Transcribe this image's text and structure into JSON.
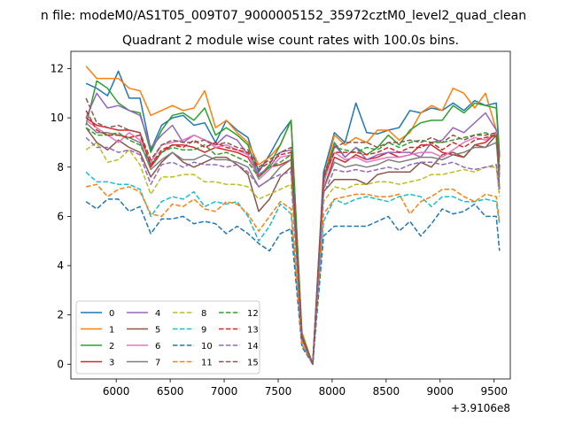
{
  "chart_data": {
    "type": "line",
    "suptitle": "n file: modeM0/AS1T05_009T07_9000005152_35972cztM0_level2_quad_clean",
    "title": "Quadrant 2 module wise count rates with 100.0s bins.",
    "xlabel": "",
    "ylabel": "",
    "x_offset_label": "+3.9106e8",
    "xlim": [
      5580,
      9650
    ],
    "ylim": [
      -0.6,
      12.7
    ],
    "xticks": [
      6000,
      6500,
      7000,
      7500,
      8000,
      8500,
      9000,
      9500
    ],
    "yticks": [
      0,
      2,
      4,
      6,
      8,
      10,
      12
    ],
    "x": [
      5720,
      5820,
      5920,
      6020,
      6120,
      6220,
      6320,
      6420,
      6520,
      6620,
      6720,
      6820,
      6920,
      7020,
      7120,
      7220,
      7320,
      7420,
      7520,
      7620,
      7720,
      7820,
      7920,
      8020,
      8120,
      8220,
      8320,
      8420,
      8520,
      8620,
      8720,
      8820,
      8920,
      9020,
      9120,
      9220,
      9320,
      9420,
      9520,
      9550
    ],
    "legend": {
      "placement": "lower-left",
      "columns": 4
    },
    "series": [
      {
        "name": "0",
        "color": "#1f77b4",
        "dash": "solid",
        "values": [
          11.4,
          11.2,
          10.9,
          11.9,
          10.8,
          10.8,
          8.7,
          9.7,
          10.0,
          10.1,
          9.7,
          9.8,
          9.0,
          9.9,
          9.5,
          9.2,
          7.8,
          8.5,
          9.3,
          9.9,
          1.2,
          0.0,
          7.8,
          9.4,
          9.0,
          10.6,
          9.4,
          9.35,
          9.5,
          9.6,
          10.3,
          10.2,
          10.4,
          10.3,
          10.6,
          10.3,
          10.7,
          10.5,
          10.6,
          8.5
        ]
      },
      {
        "name": "1",
        "color": "#ff7f0e",
        "dash": "solid",
        "values": [
          12.1,
          11.6,
          11.6,
          11.6,
          11.2,
          11.1,
          10.1,
          10.3,
          10.5,
          10.3,
          10.4,
          11.1,
          9.6,
          9.9,
          9.4,
          9.0,
          8.1,
          8.4,
          8.9,
          9.9,
          1.3,
          0.0,
          7.5,
          9.3,
          8.9,
          9.2,
          9.0,
          9.5,
          9.5,
          9.1,
          9.4,
          10.2,
          10.5,
          10.3,
          11.2,
          11.0,
          10.4,
          11.0,
          9.5,
          8.4
        ]
      },
      {
        "name": "2",
        "color": "#2ca02c",
        "dash": "solid",
        "values": [
          9.7,
          11.5,
          11.2,
          10.6,
          10.3,
          10.2,
          8.6,
          9.5,
          10.1,
          10.2,
          9.9,
          10.4,
          9.3,
          9.6,
          9.3,
          8.9,
          7.6,
          8.1,
          8.9,
          9.9,
          1.2,
          0.0,
          7.4,
          9.0,
          8.4,
          8.8,
          8.5,
          8.8,
          9.3,
          8.9,
          9.5,
          9.8,
          9.9,
          9.9,
          10.5,
          10.2,
          10.6,
          10.5,
          10.4,
          8.4
        ]
      },
      {
        "name": "3",
        "color": "#d62728",
        "dash": "solid",
        "values": [
          10.0,
          9.7,
          9.6,
          9.5,
          9.5,
          9.4,
          8.0,
          8.6,
          8.9,
          8.9,
          8.8,
          8.6,
          8.8,
          8.7,
          8.6,
          8.4,
          7.6,
          8.0,
          8.1,
          8.3,
          1.1,
          0.0,
          7.1,
          8.4,
          8.2,
          8.5,
          8.3,
          8.4,
          8.6,
          8.4,
          8.5,
          8.9,
          8.9,
          8.6,
          8.5,
          8.4,
          8.9,
          9.0,
          9.4,
          7.9
        ]
      },
      {
        "name": "4",
        "color": "#9467bd",
        "dash": "solid",
        "values": [
          10.0,
          11.0,
          10.4,
          10.5,
          10.3,
          10.1,
          8.8,
          9.3,
          9.7,
          9.0,
          9.3,
          9.1,
          8.9,
          9.3,
          9.1,
          8.5,
          7.7,
          8.0,
          8.6,
          8.7,
          1.0,
          0.0,
          7.3,
          8.9,
          8.4,
          8.8,
          8.3,
          8.5,
          8.6,
          8.6,
          8.6,
          8.4,
          9.0,
          9.1,
          9.6,
          9.4,
          9.8,
          10.2,
          9.5,
          7.7
        ]
      },
      {
        "name": "5",
        "color": "#8c564b",
        "dash": "solid",
        "values": [
          9.6,
          9.0,
          8.7,
          9.1,
          8.8,
          8.6,
          7.6,
          8.2,
          8.6,
          8.2,
          8.0,
          8.2,
          8.4,
          8.4,
          8.1,
          7.7,
          6.2,
          6.7,
          7.6,
          8.0,
          1.0,
          0.0,
          7.0,
          7.5,
          7.5,
          7.5,
          7.3,
          7.7,
          7.8,
          7.8,
          7.8,
          8.2,
          8.0,
          8.5,
          8.6,
          8.4,
          8.9,
          8.8,
          9.3,
          7.1
        ]
      },
      {
        "name": "6",
        "color": "#e377c2",
        "dash": "solid",
        "values": [
          9.9,
          9.6,
          9.3,
          9.0,
          9.4,
          9.1,
          8.2,
          8.9,
          9.0,
          9.1,
          9.3,
          9.1,
          8.8,
          8.9,
          8.7,
          8.5,
          7.5,
          7.9,
          8.4,
          8.5,
          1.1,
          0.0,
          7.4,
          8.6,
          8.3,
          8.4,
          8.2,
          8.3,
          8.4,
          8.4,
          8.5,
          8.6,
          8.6,
          8.4,
          8.7,
          9.0,
          9.2,
          9.1,
          9.4,
          7.9
        ]
      },
      {
        "name": "7",
        "color": "#7f7f7f",
        "dash": "solid",
        "values": [
          9.8,
          9.4,
          9.4,
          9.3,
          9.2,
          9.0,
          7.9,
          8.3,
          8.6,
          8.3,
          8.3,
          8.5,
          8.3,
          8.3,
          8.2,
          8.0,
          7.2,
          7.5,
          8.0,
          8.3,
          1.0,
          0.0,
          7.1,
          8.2,
          8.0,
          8.1,
          8.0,
          8.1,
          8.3,
          8.2,
          8.3,
          8.4,
          8.4,
          8.3,
          8.5,
          8.6,
          8.8,
          8.8,
          9.0,
          7.6
        ]
      },
      {
        "name": "8",
        "color": "#bcbd22",
        "dash": "dashed",
        "values": [
          8.7,
          9.0,
          8.2,
          8.3,
          8.7,
          8.1,
          6.9,
          7.6,
          7.6,
          7.7,
          7.7,
          7.4,
          7.4,
          7.3,
          7.3,
          7.2,
          6.7,
          6.9,
          7.1,
          7.3,
          1.0,
          0.0,
          6.6,
          7.2,
          7.1,
          7.3,
          7.3,
          7.4,
          7.4,
          7.3,
          7.4,
          7.5,
          7.7,
          7.7,
          7.8,
          7.9,
          7.8,
          8.0,
          8.0,
          6.8
        ]
      },
      {
        "name": "9",
        "color": "#17becf",
        "dash": "dashed",
        "values": [
          7.8,
          7.4,
          7.4,
          7.3,
          7.3,
          7.1,
          6.0,
          6.6,
          6.8,
          6.7,
          7.0,
          6.4,
          6.6,
          6.5,
          6.6,
          6.0,
          5.0,
          5.6,
          6.5,
          6.1,
          0.8,
          0.0,
          5.8,
          6.7,
          6.5,
          6.7,
          6.8,
          6.7,
          6.6,
          6.8,
          6.9,
          6.8,
          6.4,
          6.8,
          6.8,
          6.6,
          6.6,
          6.7,
          6.6,
          5.7
        ]
      },
      {
        "name": "10",
        "color": "#1f77b4",
        "dash": "dashed",
        "values": [
          6.6,
          6.3,
          6.7,
          6.7,
          6.2,
          6.4,
          5.3,
          5.9,
          5.9,
          6.0,
          5.7,
          5.8,
          5.7,
          5.3,
          5.6,
          5.3,
          4.9,
          4.6,
          5.3,
          5.5,
          0.7,
          0.0,
          5.2,
          5.6,
          5.6,
          5.6,
          5.6,
          5.8,
          6.0,
          5.4,
          5.8,
          5.2,
          5.7,
          6.3,
          6.1,
          6.2,
          6.5,
          6.0,
          6.0,
          4.6
        ]
      },
      {
        "name": "11",
        "color": "#ff7f0e",
        "dash": "dashed",
        "values": [
          7.2,
          7.3,
          6.8,
          7.1,
          7.2,
          7.0,
          6.1,
          6.0,
          6.5,
          6.4,
          6.7,
          6.3,
          6.2,
          6.6,
          6.5,
          6.1,
          5.4,
          6.0,
          6.6,
          6.3,
          0.8,
          0.0,
          6.1,
          6.7,
          6.8,
          6.9,
          6.9,
          6.8,
          6.8,
          6.9,
          6.1,
          6.6,
          6.8,
          7.1,
          7.1,
          6.8,
          6.6,
          6.9,
          6.8,
          5.8
        ]
      },
      {
        "name": "12",
        "color": "#2ca02c",
        "dash": "dashed",
        "values": [
          9.6,
          9.3,
          9.3,
          9.4,
          9.1,
          8.9,
          8.1,
          8.6,
          8.8,
          8.7,
          8.7,
          8.9,
          8.5,
          8.6,
          8.4,
          8.2,
          7.6,
          8.0,
          8.2,
          8.5,
          1.1,
          0.0,
          7.5,
          8.8,
          8.7,
          8.6,
          8.8,
          8.7,
          9.0,
          8.8,
          9.0,
          9.1,
          9.0,
          9.0,
          9.1,
          9.2,
          9.3,
          9.4,
          9.2,
          7.8
        ]
      },
      {
        "name": "13",
        "color": "#d62728",
        "dash": "dashed",
        "values": [
          10.3,
          9.5,
          9.3,
          9.3,
          9.2,
          9.3,
          8.1,
          8.7,
          8.9,
          8.8,
          9.1,
          8.8,
          9.0,
          8.8,
          8.7,
          8.6,
          7.9,
          8.2,
          8.5,
          8.6,
          1.1,
          0.0,
          7.6,
          8.6,
          8.6,
          8.6,
          8.5,
          8.6,
          8.8,
          8.6,
          8.8,
          8.8,
          9.0,
          8.7,
          9.0,
          8.8,
          9.1,
          9.2,
          9.3,
          8.0
        ]
      },
      {
        "name": "14",
        "color": "#9467bd",
        "dash": "dashed",
        "values": [
          9.2,
          8.8,
          8.8,
          8.6,
          8.7,
          8.5,
          7.3,
          8.1,
          8.2,
          8.0,
          8.2,
          8.1,
          8.1,
          8.0,
          8.1,
          7.8,
          7.2,
          7.5,
          7.7,
          7.8,
          1.0,
          0.0,
          6.9,
          7.9,
          7.8,
          7.9,
          7.8,
          7.9,
          8.0,
          7.9,
          8.1,
          8.2,
          8.2,
          8.1,
          8.2,
          8.0,
          7.9,
          8.0,
          8.1,
          7.0
        ]
      },
      {
        "name": "15",
        "color": "#8c564b",
        "dash": "dashed",
        "values": [
          10.8,
          9.8,
          9.6,
          9.7,
          9.5,
          9.4,
          8.3,
          8.9,
          9.1,
          9.0,
          9.0,
          9.1,
          8.9,
          9.0,
          8.8,
          8.7,
          8.0,
          8.3,
          8.6,
          8.8,
          1.1,
          0.0,
          7.7,
          8.8,
          9.0,
          9.0,
          9.0,
          8.8,
          9.0,
          9.0,
          9.1,
          9.0,
          9.2,
          9.0,
          9.3,
          9.1,
          9.3,
          9.3,
          9.4,
          8.2
        ]
      }
    ]
  }
}
